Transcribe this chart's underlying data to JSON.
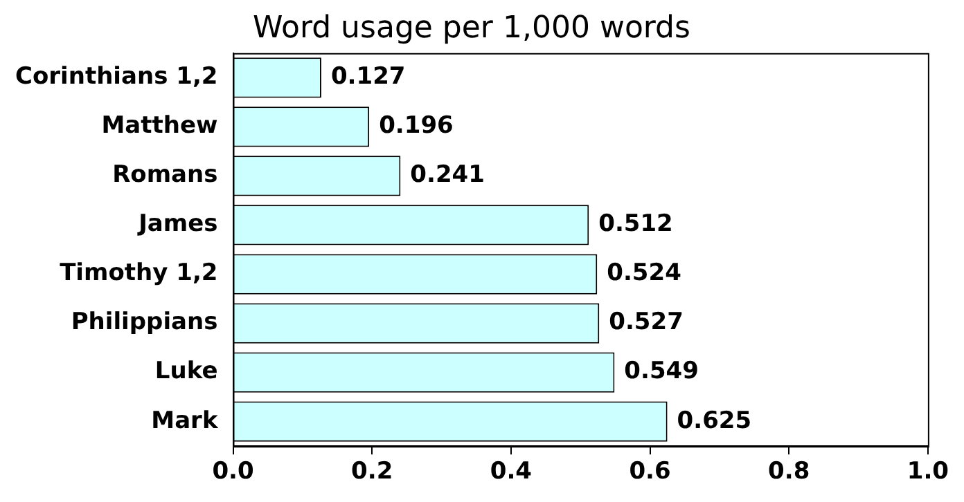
{
  "chart_data": {
    "type": "bar",
    "orientation": "horizontal",
    "title": "Word usage per 1,000 words",
    "categories": [
      "Corinthians 1,2",
      "Matthew",
      "Romans",
      "James",
      "Timothy 1,2",
      "Philippians",
      "Luke",
      "Mark"
    ],
    "values": [
      0.127,
      0.196,
      0.241,
      0.512,
      0.524,
      0.527,
      0.549,
      0.625
    ],
    "color": "#ccffff",
    "xlim": [
      0,
      1
    ],
    "xticks": [
      {
        "value": 0,
        "label": "0.0"
      },
      0.2,
      0.4,
      0.6,
      0.8,
      {
        "value": 1,
        "label": "1.0"
      }
    ],
    "data_labels": true,
    "grid": false,
    "legend": false
  }
}
